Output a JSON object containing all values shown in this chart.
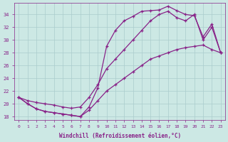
{
  "xlabel": "Windchill (Refroidissement éolien,°C)",
  "bg_color": "#cce8e4",
  "grid_color": "#aacccc",
  "line_color": "#882288",
  "xlim_min": -0.5,
  "xlim_max": 23.5,
  "ylim_min": 17.5,
  "ylim_max": 35.8,
  "xticks": [
    0,
    1,
    2,
    3,
    4,
    5,
    6,
    7,
    8,
    9,
    10,
    11,
    12,
    13,
    14,
    15,
    16,
    17,
    18,
    19,
    20,
    21,
    22,
    23
  ],
  "yticks": [
    18,
    20,
    22,
    24,
    26,
    28,
    30,
    32,
    34
  ],
  "curve1_x": [
    0,
    1,
    2,
    3,
    4,
    5,
    6,
    7,
    8,
    9,
    10,
    11,
    12,
    13,
    14,
    15,
    16,
    17,
    18,
    19,
    20,
    21,
    22,
    23
  ],
  "curve1_y": [
    21.0,
    20.0,
    19.2,
    18.8,
    18.6,
    18.4,
    18.2,
    18.0,
    19.5,
    22.5,
    29.0,
    31.5,
    33.0,
    33.7,
    34.5,
    34.6,
    34.7,
    35.3,
    34.6,
    34.0,
    33.8,
    30.5,
    32.5,
    28.0
  ],
  "curve2_x": [
    0,
    1,
    2,
    3,
    4,
    5,
    6,
    7,
    8,
    9,
    10,
    11,
    12,
    13,
    14,
    15,
    16,
    17,
    18,
    19,
    20,
    21,
    22,
    23
  ],
  "curve2_y": [
    21.0,
    20.5,
    20.2,
    20.0,
    19.8,
    19.5,
    19.3,
    19.5,
    21.0,
    23.0,
    25.5,
    27.0,
    28.5,
    30.0,
    31.5,
    33.0,
    34.0,
    34.5,
    33.5,
    33.0,
    34.0,
    30.0,
    32.0,
    28.0
  ],
  "curve3_x": [
    0,
    1,
    2,
    3,
    4,
    5,
    6,
    7,
    8,
    9,
    10,
    11,
    12,
    13,
    14,
    15,
    16,
    17,
    18,
    19,
    20,
    21,
    22,
    23
  ],
  "curve3_y": [
    21.0,
    20.0,
    19.2,
    18.8,
    18.6,
    18.4,
    18.2,
    18.0,
    19.0,
    20.5,
    22.0,
    23.0,
    24.0,
    25.0,
    26.0,
    27.0,
    27.5,
    28.0,
    28.5,
    28.8,
    29.0,
    29.2,
    28.5,
    28.0
  ]
}
